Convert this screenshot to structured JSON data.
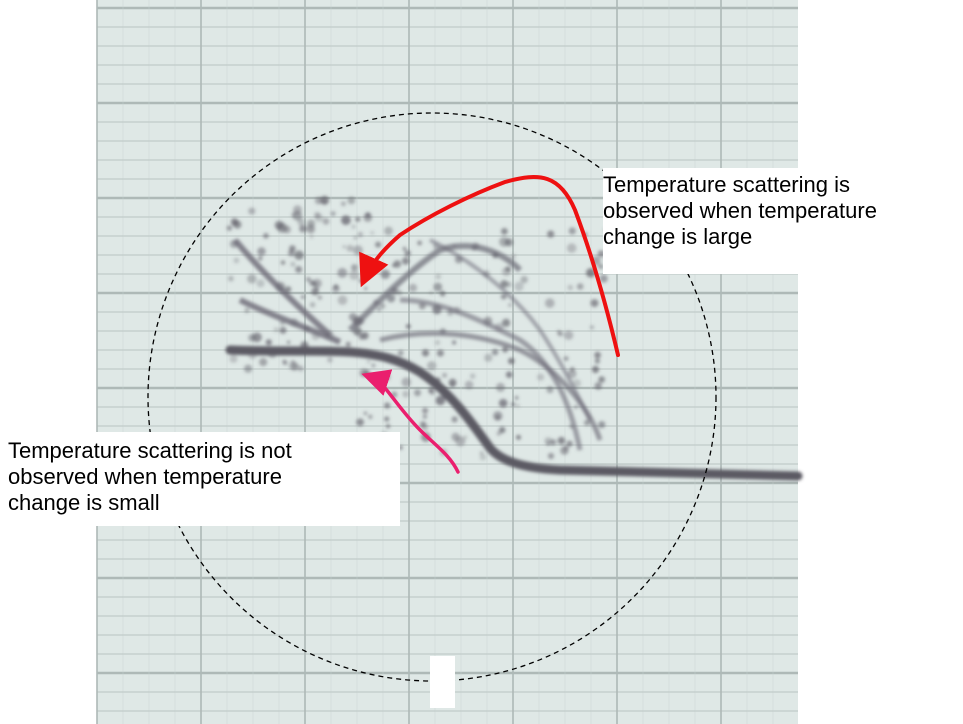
{
  "colors": {
    "chart_background": "#dfe8e6",
    "grid_minor": "#c6d0ce",
    "grid_major": "#aeb9b7",
    "trace": "#5c5a64",
    "arrow_large": "#ee1111",
    "arrow_small": "#ea1f6e",
    "circle": "#000000"
  },
  "annotations": {
    "large_change": {
      "lines": [
        "Temperature scattering is",
        "observed when temperature",
        "change is large"
      ]
    },
    "small_change": {
      "lines": [
        "Temperature scattering is not",
        "observed when temperature",
        "change is small"
      ]
    }
  }
}
